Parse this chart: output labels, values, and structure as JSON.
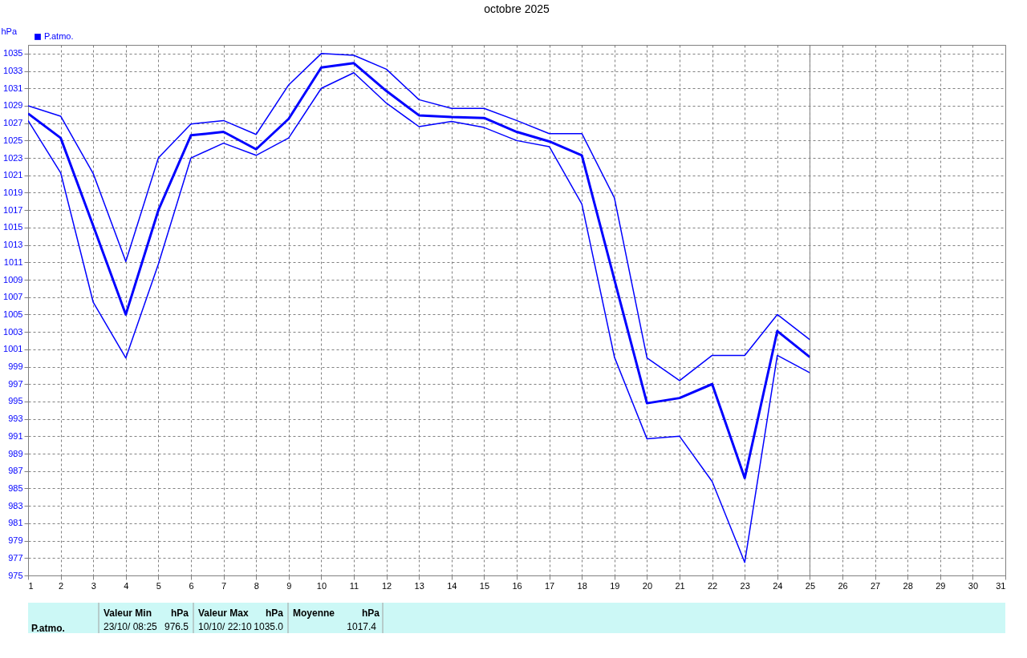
{
  "chart_data": {
    "type": "line",
    "title": "octobre 2025",
    "ylabel": "hPa",
    "x": [
      1,
      2,
      3,
      4,
      5,
      6,
      7,
      8,
      9,
      10,
      11,
      12,
      13,
      14,
      15,
      16,
      17,
      18,
      19,
      20,
      21,
      22,
      23,
      24,
      25
    ],
    "series": [
      {
        "color": "#0000ff",
        "values": [
          1029.0,
          1027.8,
          1021.2,
          1011.1,
          1023.0,
          1026.9,
          1027.3,
          1025.7,
          1031.4,
          1035.0,
          1034.8,
          1033.2,
          1029.7,
          1028.7,
          1028.7,
          1027.3,
          1025.8,
          1025.8,
          1018.4,
          1000.0,
          997.4,
          1000.3,
          1000.3,
          1005.0,
          1002.1
        ]
      },
      {
        "name": "P.atmo.",
        "color": "#0000ff",
        "values": [
          1028.1,
          1025.3,
          1015.2,
          1005.0,
          1017.0,
          1025.6,
          1026.0,
          1024.0,
          1027.5,
          1033.4,
          1033.9,
          1030.7,
          1027.9,
          1027.7,
          1027.6,
          1026.0,
          1024.9,
          1023.3,
          1009.0,
          994.8,
          995.4,
          997.0,
          986.2,
          1003.1,
          1000.1
        ]
      },
      {
        "color": "#0000ff",
        "values": [
          1027.3,
          1021.3,
          1006.4,
          1000.0,
          1010.8,
          1023.0,
          1024.7,
          1023.3,
          1025.3,
          1031.0,
          1032.8,
          1029.3,
          1026.6,
          1027.2,
          1026.5,
          1025.0,
          1024.3,
          1017.7,
          1000.1,
          990.7,
          991.0,
          985.8,
          976.5,
          1000.3,
          998.3
        ]
      }
    ],
    "xlim": [
      1,
      31
    ],
    "xticks": [
      1,
      2,
      3,
      4,
      5,
      6,
      7,
      8,
      9,
      10,
      11,
      12,
      13,
      14,
      15,
      16,
      17,
      18,
      19,
      20,
      21,
      22,
      23,
      24,
      25,
      26,
      27,
      28,
      29,
      30,
      31
    ],
    "ylim": [
      975,
      1036
    ],
    "yticks": [
      975,
      977,
      979,
      981,
      983,
      985,
      987,
      989,
      991,
      993,
      995,
      997,
      999,
      1001,
      1003,
      1005,
      1007,
      1009,
      1011,
      1013,
      1015,
      1017,
      1019,
      1021,
      1023,
      1025,
      1027,
      1029,
      1031,
      1033,
      1035
    ],
    "ref_lines": [
      {
        "axis": "x",
        "value": 25,
        "color": "#808080"
      }
    ],
    "grid": true,
    "legend": "top left",
    "marker": "none",
    "line_style": "solid",
    "annotations": [
      "P.atmo.",
      "Valeur Min",
      "hPa",
      "23/10/  08:25",
      "976.5",
      "Valeur Max",
      "hPa",
      "10/10/  22:10",
      "1035.0",
      "Moyenne",
      "hPa",
      "1017.4"
    ]
  }
}
